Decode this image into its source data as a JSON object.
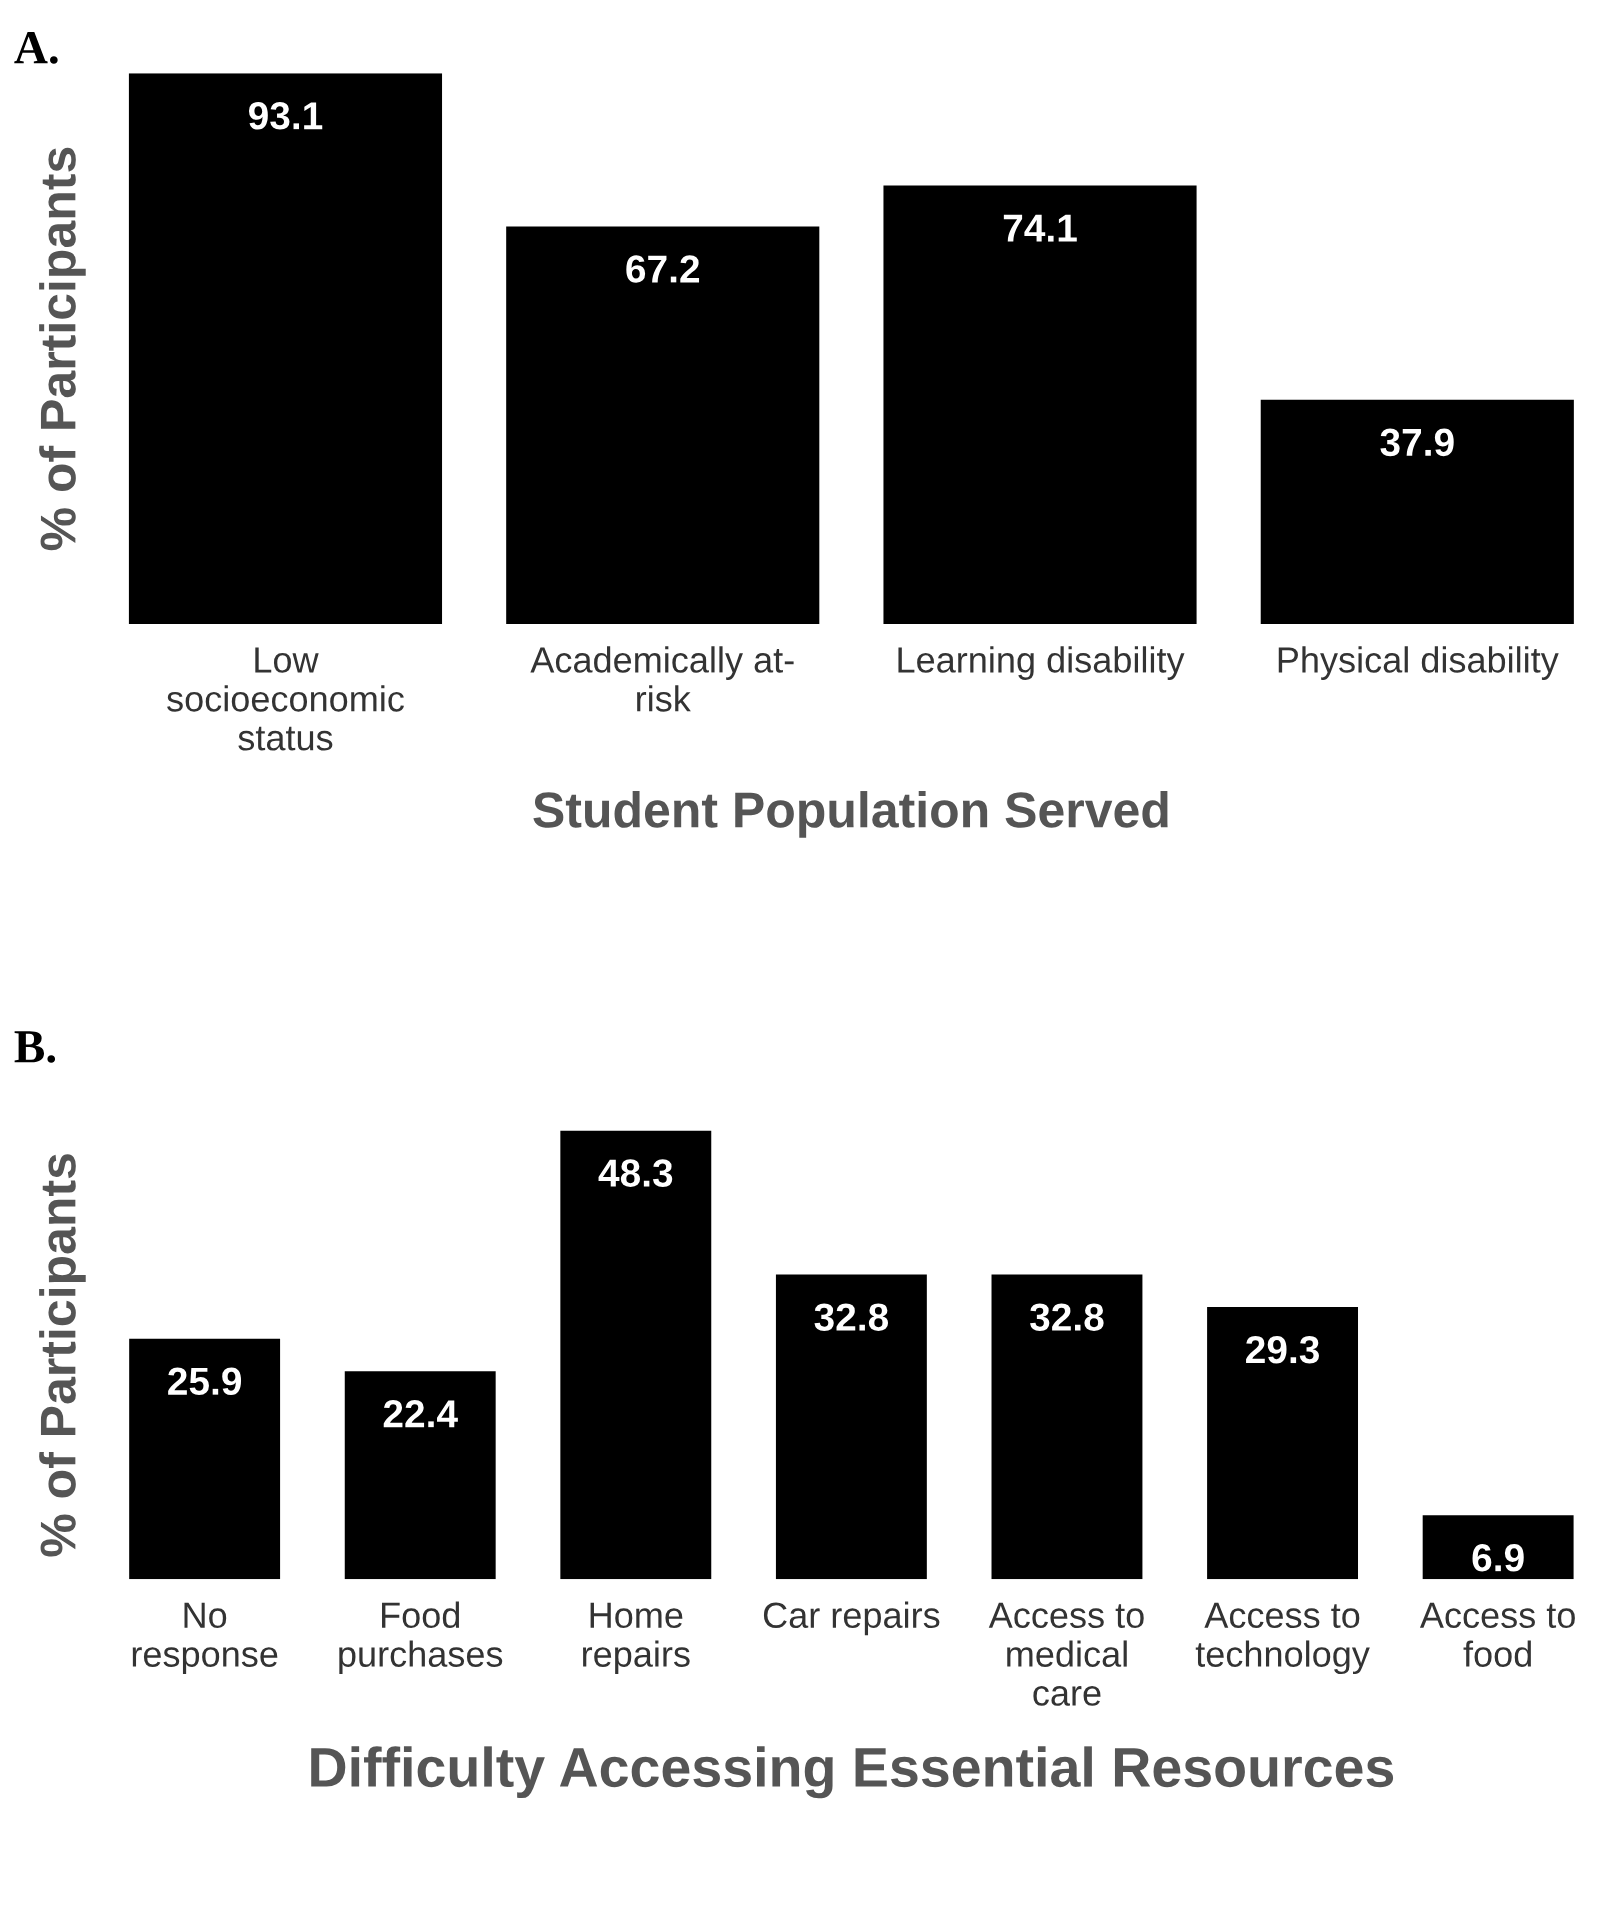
{
  "chart_data": [
    {
      "type": "bar",
      "title": "A.",
      "xlabel": "Student Population Served",
      "ylabel": "% of Participants",
      "categories": [
        "Low\nsocioeconomic\nstatus",
        "Academically at-\nrisk",
        "Learning disability",
        "Physical disability"
      ],
      "values": [
        93.1,
        67.2,
        74.1,
        37.9
      ],
      "color": "#000000",
      "data_labels": true,
      "grid": false,
      "legend": false
    },
    {
      "type": "bar",
      "title": "B.",
      "xlabel": "Difficulty Accessing Essential Resources",
      "ylabel": "% of Participants",
      "categories": [
        "No\nresponse",
        "Food\npurchases",
        "Home\nrepairs",
        "Car repairs",
        "Access to\nmedical\ncare",
        "Access to\ntechnology",
        "Access to\nfood"
      ],
      "values": [
        25.9,
        22.4,
        48.3,
        32.8,
        32.8,
        29.3,
        6.9
      ],
      "color": "#000000",
      "data_labels": true,
      "grid": false,
      "legend": false
    }
  ]
}
